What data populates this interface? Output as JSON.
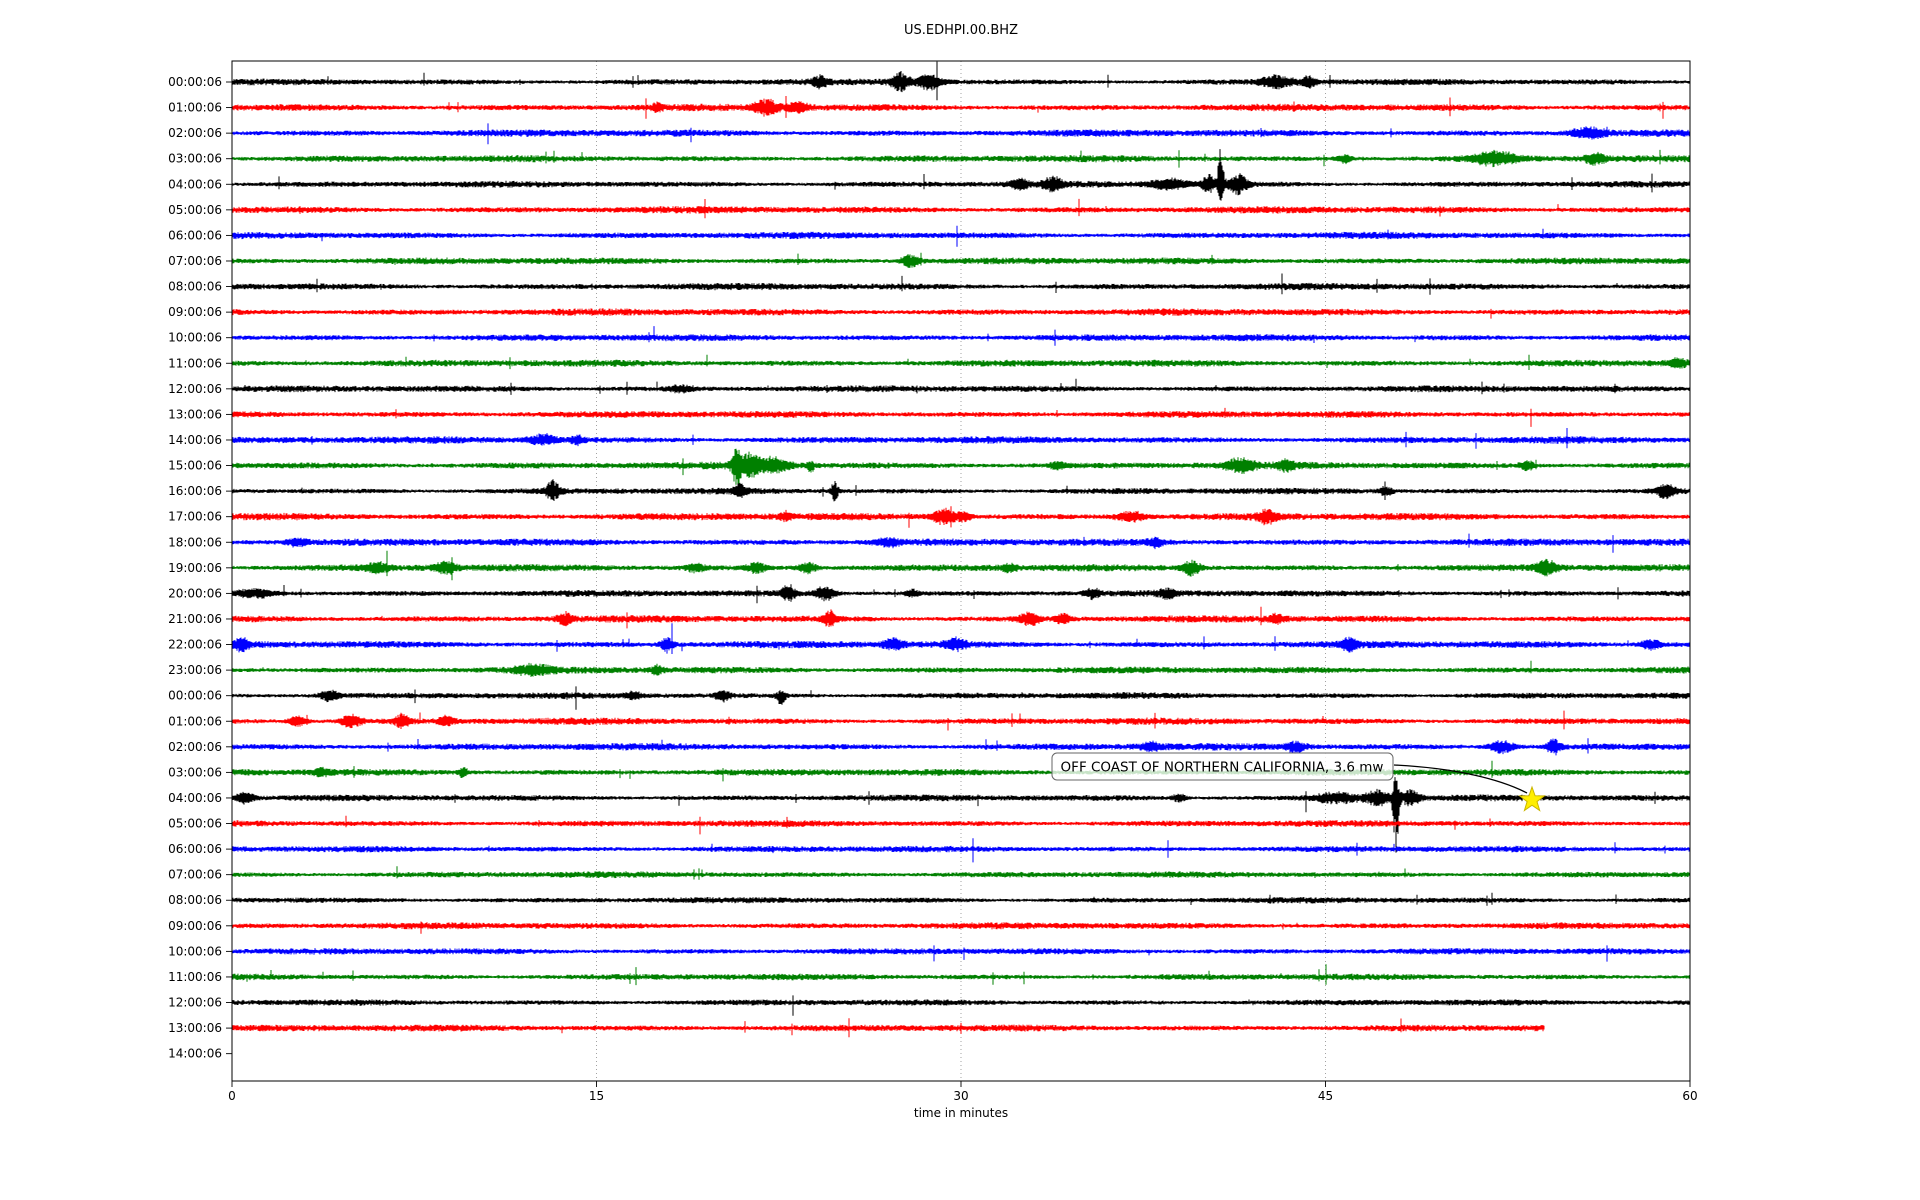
{
  "title": "US.EDHPI.00.BHZ",
  "chart_data": {
    "type": "line",
    "subtype": "seismogram-dayplot",
    "title": "US.EDHPI.00.BHZ",
    "xlabel": "time in minutes",
    "xlim": [
      0,
      60
    ],
    "x_ticks": [
      "0",
      "15",
      "30",
      "45",
      "60"
    ],
    "x_tick_values": [
      0,
      15,
      30,
      45,
      60
    ],
    "grid_minutes": [
      15,
      30,
      45
    ],
    "grid_on": true,
    "color_cycle": [
      "#000000",
      "#ff0000",
      "#0000ff",
      "#008000"
    ],
    "background_color": "#ffffff",
    "annotation": {
      "text": "OFF COAST OF NORTHERN CALIFORNIA, 3.6 mw",
      "row_index": 28,
      "row_label": "04:00:06",
      "star_minute": 53.5,
      "spike_minute": 47.9,
      "star_color": "#ffee00",
      "box_border_color": "#666666"
    },
    "rows": [
      {
        "label": "00:00:06",
        "color": "#000000",
        "end_minute": 60,
        "amp": 2.4,
        "events": [
          {
            "m": 24.2,
            "a": 4,
            "w": 0.3
          },
          {
            "m": 27.5,
            "a": 8,
            "w": 0.35
          },
          {
            "m": 28.7,
            "a": 6,
            "w": 0.5
          },
          {
            "m": 43.0,
            "a": 5,
            "w": 0.7
          },
          {
            "m": 44.3,
            "a": 4,
            "w": 0.3
          }
        ]
      },
      {
        "label": "01:00:06",
        "color": "#ff0000",
        "end_minute": 60,
        "amp": 2.7,
        "events": [
          {
            "m": 17.5,
            "a": 3,
            "w": 0.2
          },
          {
            "m": 22.0,
            "a": 6,
            "w": 0.5
          },
          {
            "m": 23.3,
            "a": 4,
            "w": 0.4
          }
        ]
      },
      {
        "label": "02:00:06",
        "color": "#0000ff",
        "end_minute": 60,
        "amp": 2.7,
        "events": [
          {
            "m": 55.8,
            "a": 4,
            "w": 0.7
          }
        ]
      },
      {
        "label": "03:00:06",
        "color": "#008000",
        "end_minute": 60,
        "amp": 2.6,
        "events": [
          {
            "m": 45.8,
            "a": 3,
            "w": 0.3
          },
          {
            "m": 52.0,
            "a": 5,
            "w": 0.9
          },
          {
            "m": 56.1,
            "a": 4,
            "w": 0.4
          }
        ]
      },
      {
        "label": "04:00:06",
        "color": "#000000",
        "end_minute": 60,
        "amp": 2.4,
        "events": [
          {
            "m": 32.4,
            "a": 4,
            "w": 0.4
          },
          {
            "m": 33.8,
            "a": 5,
            "w": 0.4
          },
          {
            "m": 38.6,
            "a": 4,
            "w": 0.8
          },
          {
            "m": 40.2,
            "a": 7,
            "w": 0.3
          },
          {
            "m": 40.7,
            "a": 38,
            "w": 0.12,
            "spike": true,
            "dir": "up"
          },
          {
            "m": 41.4,
            "a": 8,
            "w": 0.4
          }
        ]
      },
      {
        "label": "05:00:06",
        "color": "#ff0000",
        "end_minute": 60,
        "amp": 2.7,
        "events": []
      },
      {
        "label": "06:00:06",
        "color": "#0000ff",
        "end_minute": 60,
        "amp": 2.6,
        "events": []
      },
      {
        "label": "07:00:06",
        "color": "#008000",
        "end_minute": 60,
        "amp": 2.6,
        "events": [
          {
            "m": 27.9,
            "a": 5,
            "w": 0.35
          }
        ]
      },
      {
        "label": "08:00:06",
        "color": "#000000",
        "end_minute": 60,
        "amp": 2.6,
        "events": []
      },
      {
        "label": "09:00:06",
        "color": "#ff0000",
        "end_minute": 60,
        "amp": 2.7,
        "events": []
      },
      {
        "label": "10:00:06",
        "color": "#0000ff",
        "end_minute": 60,
        "amp": 2.6,
        "events": []
      },
      {
        "label": "11:00:06",
        "color": "#008000",
        "end_minute": 60,
        "amp": 2.6,
        "events": [
          {
            "m": 59.5,
            "a": 3,
            "w": 0.4
          }
        ]
      },
      {
        "label": "12:00:06",
        "color": "#000000",
        "end_minute": 60,
        "amp": 2.5,
        "events": [
          {
            "m": 18.5,
            "a": 2.5,
            "w": 0.5
          }
        ]
      },
      {
        "label": "13:00:06",
        "color": "#ff0000",
        "end_minute": 60,
        "amp": 2.6,
        "events": []
      },
      {
        "label": "14:00:06",
        "color": "#0000ff",
        "end_minute": 60,
        "amp": 2.7,
        "events": [
          {
            "m": 12.8,
            "a": 4,
            "w": 0.6
          },
          {
            "m": 14.2,
            "a": 3,
            "w": 0.3
          }
        ]
      },
      {
        "label": "15:00:06",
        "color": "#008000",
        "end_minute": 60,
        "amp": 2.7,
        "events": [
          {
            "m": 20.75,
            "a": 15,
            "w": 0.15,
            "spike": true,
            "dir": "both"
          },
          {
            "m": 21.2,
            "a": 9,
            "w": 0.5
          },
          {
            "m": 22.3,
            "a": 6,
            "w": 0.6
          },
          {
            "m": 23.8,
            "a": 8,
            "w": 0.12,
            "spike": true,
            "dir": "down"
          },
          {
            "m": 34.0,
            "a": 3,
            "w": 0.3
          },
          {
            "m": 41.5,
            "a": 5,
            "w": 0.6
          },
          {
            "m": 43.4,
            "a": 4,
            "w": 0.3
          },
          {
            "m": 53.3,
            "a": 4,
            "w": 0.3
          }
        ]
      },
      {
        "label": "16:00:06",
        "color": "#000000",
        "end_minute": 60,
        "amp": 2.4,
        "events": [
          {
            "m": 13.2,
            "a": 8,
            "w": 0.3
          },
          {
            "m": 20.9,
            "a": 5,
            "w": 0.25
          },
          {
            "m": 24.8,
            "a": 8,
            "w": 0.15
          },
          {
            "m": 47.5,
            "a": 3,
            "w": 0.3
          },
          {
            "m": 59.0,
            "a": 5,
            "w": 0.4
          }
        ]
      },
      {
        "label": "17:00:06",
        "color": "#ff0000",
        "end_minute": 60,
        "amp": 2.8,
        "events": [
          {
            "m": 22.8,
            "a": 3,
            "w": 0.2
          },
          {
            "m": 29.3,
            "a": 6,
            "w": 0.5
          },
          {
            "m": 30.1,
            "a": 4,
            "w": 0.3
          },
          {
            "m": 37.0,
            "a": 4,
            "w": 0.6
          },
          {
            "m": 42.6,
            "a": 5,
            "w": 0.4
          }
        ]
      },
      {
        "label": "18:00:06",
        "color": "#0000ff",
        "end_minute": 60,
        "amp": 2.8,
        "events": [
          {
            "m": 2.7,
            "a": 3,
            "w": 0.4
          },
          {
            "m": 27.0,
            "a": 3,
            "w": 0.5
          },
          {
            "m": 38.0,
            "a": 3,
            "w": 0.3
          }
        ]
      },
      {
        "label": "19:00:06",
        "color": "#008000",
        "end_minute": 60,
        "amp": 2.7,
        "events": [
          {
            "m": 6.0,
            "a": 4,
            "w": 0.4
          },
          {
            "m": 8.8,
            "a": 5,
            "w": 0.4
          },
          {
            "m": 19.1,
            "a": 3,
            "w": 0.4
          },
          {
            "m": 21.6,
            "a": 4,
            "w": 0.4
          },
          {
            "m": 23.7,
            "a": 4,
            "w": 0.4
          },
          {
            "m": 32.0,
            "a": 3,
            "w": 0.3
          },
          {
            "m": 39.5,
            "a": 6,
            "w": 0.35
          },
          {
            "m": 54.1,
            "a": 6,
            "w": 0.4
          }
        ]
      },
      {
        "label": "20:00:06",
        "color": "#000000",
        "end_minute": 60,
        "amp": 2.5,
        "events": [
          {
            "m": 1.0,
            "a": 3,
            "w": 0.8
          },
          {
            "m": 22.9,
            "a": 6,
            "w": 0.3
          },
          {
            "m": 24.4,
            "a": 5,
            "w": 0.4
          },
          {
            "m": 28.0,
            "a": 3,
            "w": 0.3
          },
          {
            "m": 35.4,
            "a": 4,
            "w": 0.3
          },
          {
            "m": 38.5,
            "a": 4,
            "w": 0.3
          }
        ]
      },
      {
        "label": "21:00:06",
        "color": "#ff0000",
        "end_minute": 60,
        "amp": 2.7,
        "events": [
          {
            "m": 13.7,
            "a": 5,
            "w": 0.3
          },
          {
            "m": 24.6,
            "a": 6,
            "w": 0.25
          },
          {
            "m": 32.8,
            "a": 5,
            "w": 0.4
          },
          {
            "m": 34.2,
            "a": 4,
            "w": 0.3
          },
          {
            "m": 43.0,
            "a": 3,
            "w": 0.3
          }
        ]
      },
      {
        "label": "22:00:06",
        "color": "#0000ff",
        "end_minute": 60,
        "amp": 2.7,
        "events": [
          {
            "m": 0.4,
            "a": 5,
            "w": 0.3
          },
          {
            "m": 17.9,
            "a": 6,
            "w": 0.25
          },
          {
            "m": 27.2,
            "a": 4,
            "w": 0.4
          },
          {
            "m": 29.8,
            "a": 4,
            "w": 0.4
          },
          {
            "m": 46.0,
            "a": 5,
            "w": 0.3
          },
          {
            "m": 58.4,
            "a": 4,
            "w": 0.4
          }
        ]
      },
      {
        "label": "23:00:06",
        "color": "#008000",
        "end_minute": 60,
        "amp": 2.6,
        "events": [
          {
            "m": 12.4,
            "a": 4,
            "w": 0.7
          },
          {
            "m": 17.5,
            "a": 4,
            "w": 0.2
          }
        ]
      },
      {
        "label": "00:00:06",
        "color": "#000000",
        "end_minute": 60,
        "amp": 2.4,
        "events": [
          {
            "m": 4.0,
            "a": 4,
            "w": 0.4
          },
          {
            "m": 16.5,
            "a": 3,
            "w": 0.3
          },
          {
            "m": 20.2,
            "a": 4,
            "w": 0.3
          },
          {
            "m": 22.6,
            "a": 8,
            "w": 0.18,
            "spike": true,
            "dir": "down"
          }
        ]
      },
      {
        "label": "01:00:06",
        "color": "#ff0000",
        "end_minute": 60,
        "amp": 2.6,
        "events": [
          {
            "m": 2.7,
            "a": 4,
            "w": 0.4
          },
          {
            "m": 4.9,
            "a": 5,
            "w": 0.4
          },
          {
            "m": 7.0,
            "a": 5,
            "w": 0.3
          },
          {
            "m": 8.8,
            "a": 4,
            "w": 0.3
          }
        ]
      },
      {
        "label": "02:00:06",
        "color": "#0000ff",
        "end_minute": 60,
        "amp": 2.7,
        "events": [
          {
            "m": 37.8,
            "a": 3,
            "w": 0.4
          },
          {
            "m": 43.8,
            "a": 4,
            "w": 0.4
          },
          {
            "m": 52.3,
            "a": 5,
            "w": 0.5
          },
          {
            "m": 54.4,
            "a": 7,
            "w": 0.25
          }
        ]
      },
      {
        "label": "03:00:06",
        "color": "#008000",
        "end_minute": 60,
        "amp": 2.6,
        "events": [
          {
            "m": 3.7,
            "a": 3,
            "w": 0.3
          },
          {
            "m": 9.5,
            "a": 4,
            "w": 0.2
          }
        ]
      },
      {
        "label": "04:00:06",
        "color": "#000000",
        "end_minute": 60,
        "amp": 2.4,
        "events": [
          {
            "m": 0.5,
            "a": 4,
            "w": 0.4
          },
          {
            "m": 39.0,
            "a": 3,
            "w": 0.3
          },
          {
            "m": 45.5,
            "a": 4,
            "w": 1.0
          },
          {
            "m": 47.2,
            "a": 6,
            "w": 0.5
          },
          {
            "m": 47.9,
            "a": 45,
            "w": 0.12,
            "spike": true,
            "dir": "down"
          },
          {
            "m": 48.5,
            "a": 6,
            "w": 0.4
          }
        ]
      },
      {
        "label": "05:00:06",
        "color": "#ff0000",
        "end_minute": 60,
        "amp": 2.5,
        "events": []
      },
      {
        "label": "06:00:06",
        "color": "#0000ff",
        "end_minute": 60,
        "amp": 2.4,
        "events": []
      },
      {
        "label": "07:00:06",
        "color": "#008000",
        "end_minute": 60,
        "amp": 2.4,
        "events": []
      },
      {
        "label": "08:00:06",
        "color": "#000000",
        "end_minute": 60,
        "amp": 2.3,
        "events": []
      },
      {
        "label": "09:00:06",
        "color": "#ff0000",
        "end_minute": 60,
        "amp": 2.5,
        "events": []
      },
      {
        "label": "10:00:06",
        "color": "#0000ff",
        "end_minute": 60,
        "amp": 2.4,
        "events": []
      },
      {
        "label": "11:00:06",
        "color": "#008000",
        "end_minute": 60,
        "amp": 2.4,
        "events": []
      },
      {
        "label": "12:00:06",
        "color": "#000000",
        "end_minute": 60,
        "amp": 2.3,
        "events": []
      },
      {
        "label": "13:00:06",
        "color": "#ff0000",
        "end_minute": 54,
        "amp": 2.6,
        "events": []
      },
      {
        "label": "14:00:06",
        "color": null,
        "end_minute": 0,
        "amp": 0,
        "events": []
      }
    ]
  }
}
